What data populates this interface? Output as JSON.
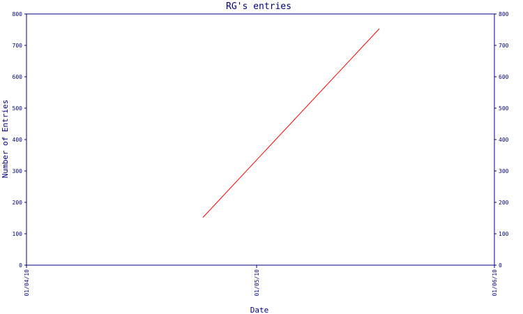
{
  "chart_data": {
    "type": "line",
    "title": "RG's entries",
    "xlabel": "Date",
    "ylabel": "Number of Entries",
    "x_ticks": [
      "01/04/10",
      "01/05/10",
      "01/06/10"
    ],
    "y_ticks": [
      "0",
      "100",
      "200",
      "300",
      "400",
      "500",
      "600",
      "700",
      "800"
    ],
    "xlim": [
      "2010-04-01",
      "2010-06-01"
    ],
    "ylim": [
      0,
      800
    ],
    "grid": false,
    "right_axis": true,
    "series": [
      {
        "color": "#ff0000",
        "x": [
          "2010-04-24",
          "2010-05-17"
        ],
        "values": [
          152,
          753
        ]
      }
    ]
  },
  "colors": {
    "axis": "#000080",
    "series": "#ff0000",
    "background": "#ffffff"
  }
}
